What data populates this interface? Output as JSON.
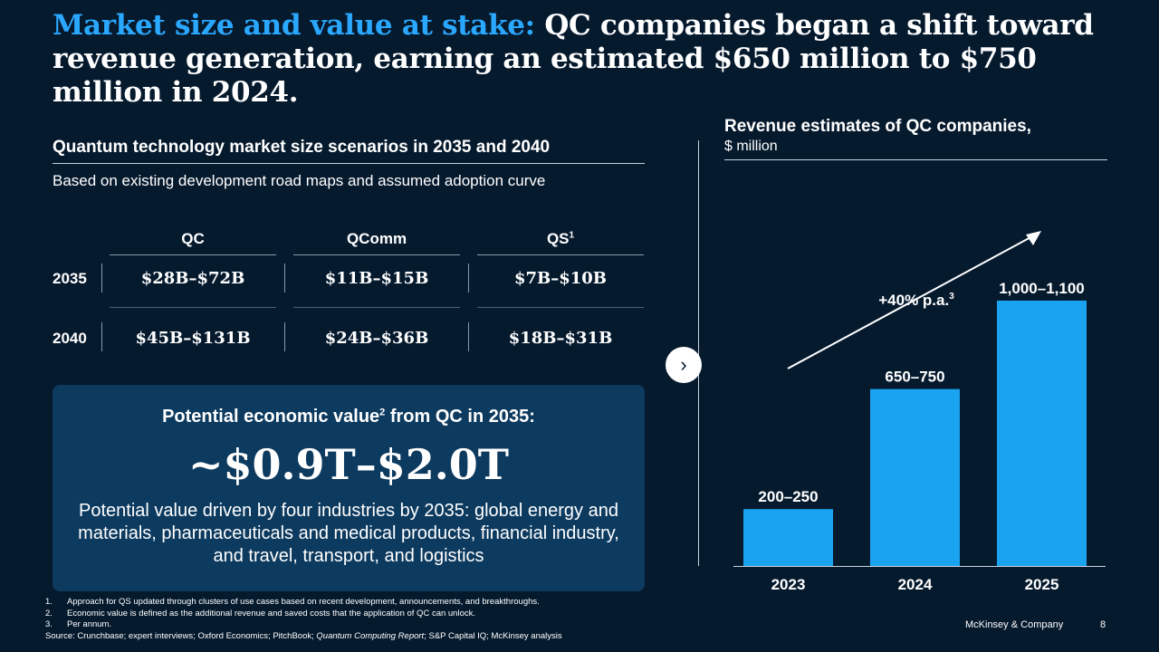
{
  "title": {
    "highlight": "Market size and value at stake:",
    "rest": "QC companies began a shift toward revenue generation, earning an estimated $650 million to $750 million in 2024."
  },
  "left": {
    "heading": "Quantum technology market size scenarios in 2035 and 2040",
    "subheading": "Based on existing development road maps and assumed adoption curve",
    "columns": [
      {
        "label": "QC",
        "sup": ""
      },
      {
        "label": "QComm",
        "sup": ""
      },
      {
        "label": "QS",
        "sup": "1"
      }
    ],
    "rows": [
      {
        "year": "2035",
        "values": [
          "$28B–$72B",
          "$11B–$15B",
          "$7B–$10B"
        ]
      },
      {
        "year": "2040",
        "values": [
          "$45B–$131B",
          "$24B–$36B",
          "$18B–$31B"
        ]
      }
    ]
  },
  "value_box": {
    "title_pre": "Potential economic value",
    "title_sup": "2",
    "title_post": " from QC in 2035:",
    "big_value": "~$0.9T–$2.0T",
    "description": "Potential value driven by four industries by 2035: global energy and materials, pharmaceuticals and medical products, financial industry, and travel, transport, and logistics"
  },
  "nav": {
    "next_icon": "chevron-right-icon",
    "glyph": "›"
  },
  "chart_title": {
    "line1": "Revenue estimates of QC companies,",
    "line2": "$ million"
  },
  "chart_data": {
    "type": "bar",
    "title": "Revenue estimates of QC companies, $ million",
    "categories": [
      "2023",
      "2024",
      "2025"
    ],
    "values": [
      225,
      700,
      1050
    ],
    "labels": [
      "200–250",
      "650–750",
      "1,000–1,100"
    ],
    "ylim": [
      0,
      1100
    ],
    "annotation": {
      "text": "+40% p.a.",
      "sup": "3"
    },
    "bar_color": "#1aa3f0"
  },
  "footnotes": [
    {
      "num": "1.",
      "text": "Approach for QS updated through clusters of use cases based on recent development, announcements, and breakthroughs."
    },
    {
      "num": "2.",
      "text": "Economic value is defined as the additional revenue and saved costs that the application of QC can unlock."
    },
    {
      "num": "3.",
      "text": "Per annum."
    }
  ],
  "source": {
    "prefix": "Source: Crunchbase; expert interviews; Oxford Economics; PitchBook; ",
    "italic": "Quantum Computing Report",
    "suffix": "; S&P Capital IQ; McKinsey analysis"
  },
  "brand": "McKinsey & Company",
  "page_number": "8"
}
